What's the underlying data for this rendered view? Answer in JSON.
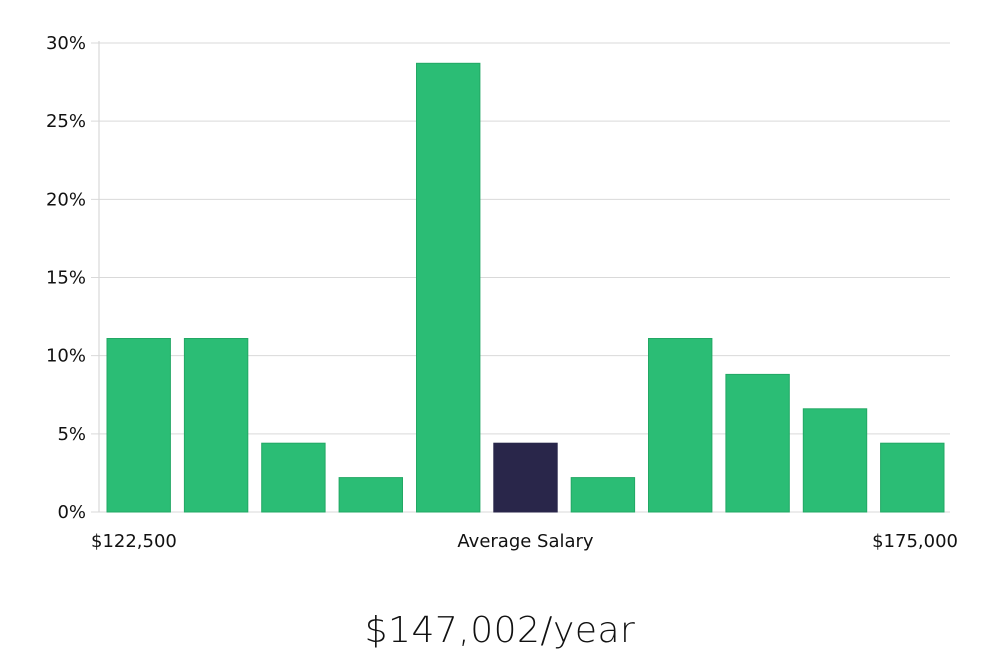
{
  "chart_data": {
    "type": "bar",
    "categories": [
      "1",
      "2",
      "3",
      "4",
      "5",
      "6",
      "7",
      "8",
      "9",
      "10",
      "11"
    ],
    "values": [
      11.1,
      11.1,
      4.4,
      2.2,
      28.7,
      4.4,
      2.2,
      11.1,
      8.8,
      6.6,
      4.4
    ],
    "highlight_index": 5,
    "ylim": [
      0,
      30
    ],
    "yticks": [
      "0%",
      "5%",
      "10%",
      "15%",
      "20%",
      "25%",
      "30%"
    ],
    "ytick_values": [
      0,
      5,
      10,
      15,
      20,
      25,
      30
    ],
    "x_labels": {
      "left": "$122,500",
      "center": "Average Salary",
      "right": "$175,000"
    },
    "grid": true,
    "colors": {
      "bar": "#2bbd75",
      "bar_edge": "#22a864",
      "highlight": "#29264a"
    }
  },
  "summary": {
    "average_salary": "$147,002/year"
  }
}
